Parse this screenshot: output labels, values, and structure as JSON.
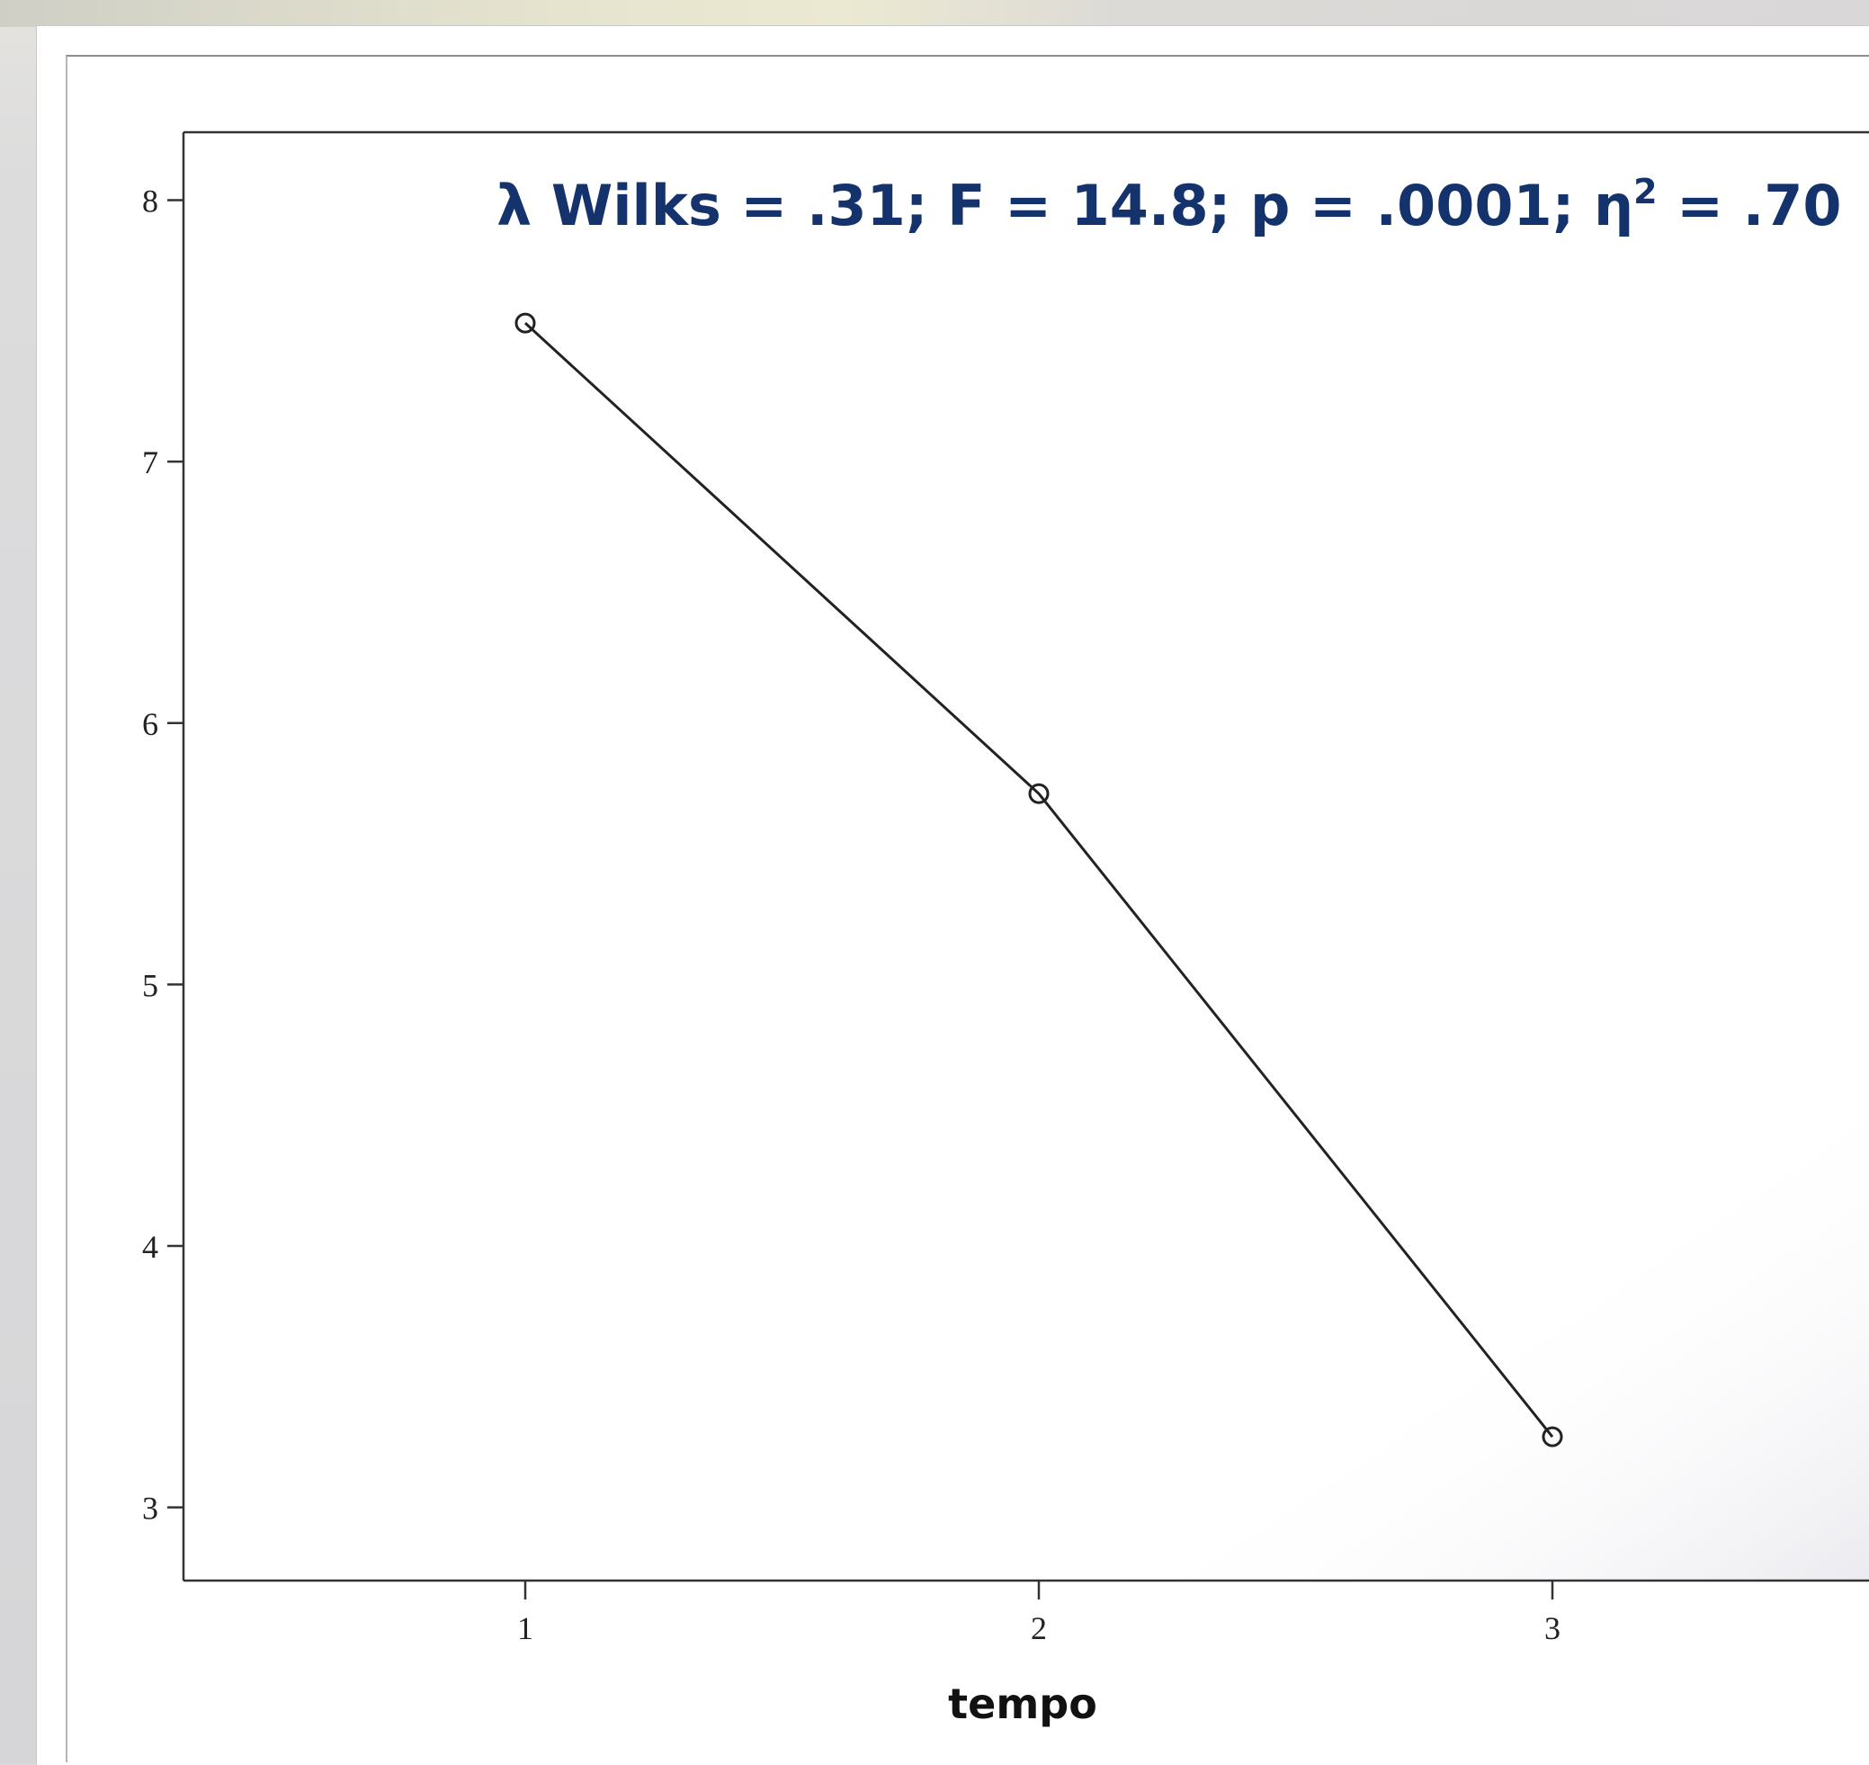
{
  "chart_data": {
    "type": "line",
    "title": "λ Wilks = .31; F = 14.8; p = .0001; η² = .70",
    "title_parts": {
      "main": "λ Wilks = .31; F = 14.8; p = .0001; η",
      "superscript": "2",
      "tail": " = .70"
    },
    "xlabel": "tempo",
    "ylabel": "",
    "categories": [
      "1",
      "2",
      "3"
    ],
    "series": [
      {
        "values": [
          7.53,
          5.73,
          3.27
        ]
      }
    ],
    "ylim": [
      2.72,
      8.26
    ],
    "yticks": [
      3,
      4,
      5,
      6,
      7,
      8
    ],
    "grid": false,
    "legend": "none",
    "marker": "open-circle",
    "colors": {
      "title": "#14326b",
      "line": "#222222",
      "axis": "#333333"
    }
  }
}
